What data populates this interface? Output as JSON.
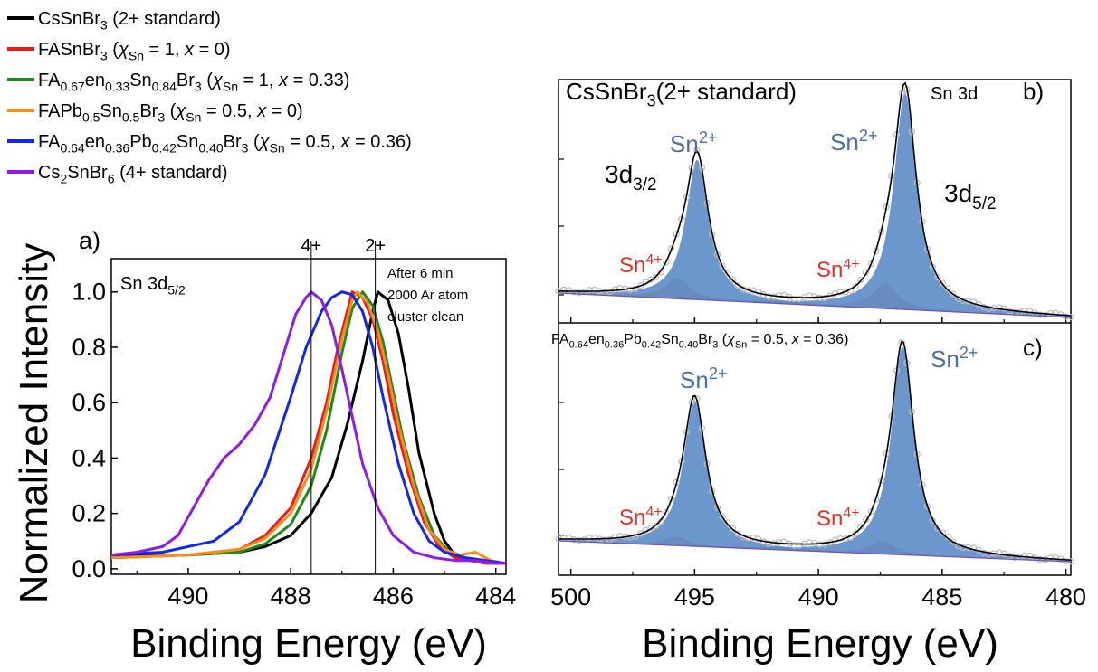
{
  "axis_ylabel": "Normalized Intensity",
  "colors": {
    "black": "#000000",
    "red": "#e3201b",
    "green": "#1e8a1e",
    "orange": "#ff8c1a",
    "blue": "#1428e6",
    "purple": "#8a1ee6",
    "sn2_fill": "#5b8cc8",
    "sn4_fill": "#d98080",
    "sn2_text": "#4a6fa0",
    "sn4_text": "#e0302a",
    "raw_points": "#bdbdbd"
  },
  "legend": [
    {
      "id": "cs2",
      "color": "#000000",
      "parts": [
        [
          "CsSnBr",
          ""
        ],
        [
          "3",
          "sub"
        ],
        [
          " (2+ standard)",
          ""
        ]
      ]
    },
    {
      "id": "fasnbr3",
      "color": "#e3201b",
      "parts": [
        [
          "FASnBr",
          ""
        ],
        [
          "3",
          "sub"
        ],
        [
          "  (",
          ""
        ],
        [
          "χ",
          "i"
        ],
        [
          "Sn",
          "sub"
        ],
        [
          " = 1, ",
          ""
        ],
        [
          "x",
          "i"
        ],
        [
          " = 0)",
          ""
        ]
      ]
    },
    {
      "id": "faen033",
      "color": "#1e8a1e",
      "parts": [
        [
          "FA",
          ""
        ],
        [
          "0.67",
          "sub"
        ],
        [
          "en",
          ""
        ],
        [
          "0.33",
          "sub"
        ],
        [
          "Sn",
          ""
        ],
        [
          "0.84",
          "sub"
        ],
        [
          "Br",
          ""
        ],
        [
          "3",
          "sub"
        ],
        [
          " (",
          ""
        ],
        [
          "χ",
          "i"
        ],
        [
          "Sn",
          "sub"
        ],
        [
          " = 1, ",
          ""
        ],
        [
          "x",
          "i"
        ],
        [
          " = 0.33)",
          ""
        ]
      ]
    },
    {
      "id": "fapbsn",
      "color": "#ff8c1a",
      "parts": [
        [
          "FAPb",
          ""
        ],
        [
          "0.5",
          "sub"
        ],
        [
          "Sn",
          ""
        ],
        [
          "0.5",
          "sub"
        ],
        [
          "Br",
          ""
        ],
        [
          "3",
          "sub"
        ],
        [
          " (",
          ""
        ],
        [
          "χ",
          "i"
        ],
        [
          "Sn",
          "sub"
        ],
        [
          " = 0.5, ",
          ""
        ],
        [
          "x",
          "i"
        ],
        [
          " = 0)",
          ""
        ]
      ]
    },
    {
      "id": "faen036",
      "color": "#1428e6",
      "parts": [
        [
          "FA",
          ""
        ],
        [
          "0.64",
          "sub"
        ],
        [
          "en",
          ""
        ],
        [
          "0.36",
          "sub"
        ],
        [
          "Pb",
          ""
        ],
        [
          "0.42",
          "sub"
        ],
        [
          "Sn",
          ""
        ],
        [
          "0.40",
          "sub"
        ],
        [
          "Br",
          ""
        ],
        [
          "3",
          "sub"
        ],
        [
          " (",
          ""
        ],
        [
          "χ",
          "i"
        ],
        [
          "Sn",
          "sub"
        ],
        [
          " = 0.5, ",
          ""
        ],
        [
          "x",
          "i"
        ],
        [
          " = 0.36)",
          ""
        ]
      ]
    },
    {
      "id": "cs4",
      "color": "#8a1ee6",
      "parts": [
        [
          "Cs",
          ""
        ],
        [
          "2",
          "sub"
        ],
        [
          "SnBr",
          ""
        ],
        [
          "6",
          "sub"
        ],
        [
          " (4+ standard)",
          ""
        ]
      ]
    }
  ],
  "chart_data": [
    {
      "panel": "a)",
      "type": "line",
      "xlabel": "Binding Energy (eV)",
      "ylabel": "Normalized Intensity",
      "xlim": [
        491.5,
        483.8
      ],
      "ylim": [
        -0.02,
        1.12
      ],
      "x_reversed": true,
      "xticks": [
        490,
        488,
        486,
        484
      ],
      "xtick_labels": [
        "490",
        "488",
        "486",
        "484"
      ],
      "yticks": [
        0.0,
        0.2,
        0.4,
        0.6,
        0.8,
        1.0
      ],
      "ytick_labels": [
        "0.0",
        "0.2",
        "0.4",
        "0.6",
        "0.8",
        "1.0"
      ],
      "vlines": [
        {
          "x": 487.6,
          "label": "4+"
        },
        {
          "x": 486.35,
          "label": "2+"
        }
      ],
      "annotation_title": [
        [
          "Sn 3d",
          ""
        ],
        [
          "5/2",
          "sub"
        ]
      ],
      "annotation_note": [
        "After 6 min",
        "2000 Ar atom",
        "cluster clean"
      ],
      "series": [
        {
          "id": "cs2",
          "x": [
            491.5,
            490.0,
            489.0,
            488.5,
            488.0,
            487.6,
            487.2,
            486.9,
            486.6,
            486.4,
            486.3,
            486.1,
            485.9,
            485.7,
            485.5,
            485.2,
            485.0,
            484.8,
            484.5,
            484.2,
            483.8
          ],
          "y": [
            0.05,
            0.05,
            0.06,
            0.08,
            0.12,
            0.2,
            0.33,
            0.52,
            0.75,
            0.93,
            1.0,
            0.97,
            0.85,
            0.65,
            0.42,
            0.2,
            0.1,
            0.05,
            0.03,
            0.02,
            0.02
          ]
        },
        {
          "id": "fasnbr3",
          "x": [
            491.5,
            490.0,
            489.0,
            488.5,
            488.0,
            487.6,
            487.3,
            487.1,
            486.9,
            486.8,
            486.6,
            486.4,
            486.2,
            486.0,
            485.7,
            485.4,
            485.1,
            484.8,
            484.5,
            484.2,
            483.8
          ],
          "y": [
            0.04,
            0.05,
            0.07,
            0.12,
            0.22,
            0.4,
            0.6,
            0.78,
            0.93,
            1.0,
            0.98,
            0.9,
            0.75,
            0.56,
            0.34,
            0.17,
            0.08,
            0.04,
            0.03,
            0.02,
            0.02
          ]
        },
        {
          "id": "faen033",
          "x": [
            491.5,
            490.0,
            489.0,
            488.5,
            488.0,
            487.6,
            487.3,
            487.0,
            486.8,
            486.6,
            486.4,
            486.2,
            486.0,
            485.8,
            485.5,
            485.2,
            484.9,
            484.6,
            484.2,
            483.8
          ],
          "y": [
            0.04,
            0.05,
            0.06,
            0.09,
            0.16,
            0.3,
            0.5,
            0.78,
            0.94,
            1.0,
            0.95,
            0.82,
            0.64,
            0.46,
            0.26,
            0.12,
            0.06,
            0.04,
            0.03,
            0.02
          ]
        },
        {
          "id": "fapbsn",
          "x": [
            491.5,
            490.0,
            489.0,
            488.5,
            488.0,
            487.6,
            487.3,
            487.0,
            486.8,
            486.7,
            486.5,
            486.3,
            486.1,
            485.9,
            485.6,
            485.3,
            485.0,
            484.7,
            484.4,
            484.1,
            483.8
          ],
          "y": [
            0.04,
            0.05,
            0.07,
            0.11,
            0.2,
            0.36,
            0.57,
            0.83,
            0.97,
            1.0,
            0.96,
            0.86,
            0.7,
            0.52,
            0.3,
            0.14,
            0.07,
            0.05,
            0.06,
            0.03,
            0.02
          ]
        },
        {
          "id": "faen036",
          "x": [
            491.5,
            490.5,
            489.5,
            489.0,
            488.5,
            488.0,
            487.7,
            487.4,
            487.2,
            487.0,
            486.8,
            486.6,
            486.4,
            486.2,
            485.9,
            485.6,
            485.3,
            485.0,
            484.6,
            484.2,
            483.8
          ],
          "y": [
            0.05,
            0.06,
            0.1,
            0.17,
            0.34,
            0.62,
            0.8,
            0.93,
            0.98,
            1.0,
            0.99,
            0.93,
            0.8,
            0.62,
            0.38,
            0.2,
            0.1,
            0.06,
            0.04,
            0.03,
            0.02
          ]
        },
        {
          "id": "cs4",
          "x": [
            491.5,
            491.0,
            490.5,
            490.2,
            489.9,
            489.6,
            489.3,
            489.0,
            488.7,
            488.4,
            488.1,
            487.9,
            487.7,
            487.6,
            487.4,
            487.2,
            487.0,
            486.8,
            486.6,
            486.3,
            486.0,
            485.6,
            485.2,
            484.8,
            484.4,
            484.0,
            483.8
          ],
          "y": [
            0.05,
            0.06,
            0.08,
            0.12,
            0.22,
            0.32,
            0.4,
            0.45,
            0.52,
            0.62,
            0.8,
            0.92,
            0.98,
            1.0,
            0.97,
            0.88,
            0.72,
            0.55,
            0.38,
            0.22,
            0.12,
            0.06,
            0.04,
            0.03,
            0.03,
            0.02,
            0.02
          ]
        }
      ]
    },
    {
      "panel": "b)",
      "type": "area",
      "xlabel": "Binding Energy (eV)",
      "xlim": [
        500.5,
        479.8
      ],
      "x_reversed": true,
      "xticks": [
        500,
        495,
        490,
        485,
        480
      ],
      "xtick_labels": [
        "500",
        "495",
        "490",
        "485",
        "480"
      ],
      "sample_title": [
        [
          "CsSnBr",
          ""
        ],
        [
          "3",
          "sub"
        ],
        [
          "(2+ standard)",
          ""
        ]
      ],
      "region_title": "Sn 3d",
      "label_3d32": [
        [
          "3d",
          ""
        ],
        [
          "3/2",
          "sub"
        ]
      ],
      "label_3d52": [
        [
          "3d",
          ""
        ],
        [
          "5/2",
          "sub"
        ]
      ],
      "components": [
        {
          "label": "Sn2+",
          "center": 494.9,
          "height": 0.62,
          "width": 0.55
        },
        {
          "label": "Sn2+",
          "center": 486.5,
          "height": 0.96,
          "width": 0.55
        },
        {
          "label": "Sn4+",
          "center": 495.7,
          "height": 0.09,
          "width": 0.6
        },
        {
          "label": "Sn4+",
          "center": 487.3,
          "height": 0.11,
          "width": 0.6
        }
      ]
    },
    {
      "panel": "c)",
      "type": "area",
      "xlabel": "Binding Energy (eV)",
      "xlim": [
        500.5,
        479.8
      ],
      "x_reversed": true,
      "xticks": [
        500,
        495,
        490,
        485,
        480
      ],
      "xtick_labels": [
        "500",
        "495",
        "490",
        "485",
        "480"
      ],
      "sample_title": [
        [
          "FA",
          ""
        ],
        [
          "0.64",
          "sub"
        ],
        [
          "en",
          ""
        ],
        [
          "0.36",
          "sub"
        ],
        [
          "Pb",
          ""
        ],
        [
          "0.42",
          "sub"
        ],
        [
          "Sn",
          ""
        ],
        [
          "0.40",
          "sub"
        ],
        [
          "Br",
          ""
        ],
        [
          "3",
          "sub"
        ],
        [
          " (",
          ""
        ],
        [
          "χ",
          "i"
        ],
        [
          "Sn",
          "sub"
        ],
        [
          " = 0.5, ",
          ""
        ],
        [
          "x",
          "i"
        ],
        [
          " = 0.36)",
          ""
        ]
      ],
      "components": [
        {
          "label": "Sn2+",
          "center": 495.0,
          "height": 0.66,
          "width": 0.55
        },
        {
          "label": "Sn2+",
          "center": 486.6,
          "height": 0.94,
          "width": 0.55
        },
        {
          "label": "Sn4+",
          "center": 495.7,
          "height": 0.04,
          "width": 0.6
        },
        {
          "label": "Sn4+",
          "center": 487.4,
          "height": 0.06,
          "width": 0.6
        }
      ]
    }
  ],
  "peak_labels": {
    "sn2_base": "Sn",
    "sn2_sup": "2+",
    "sn4_base": "Sn",
    "sn4_sup": "4+"
  }
}
